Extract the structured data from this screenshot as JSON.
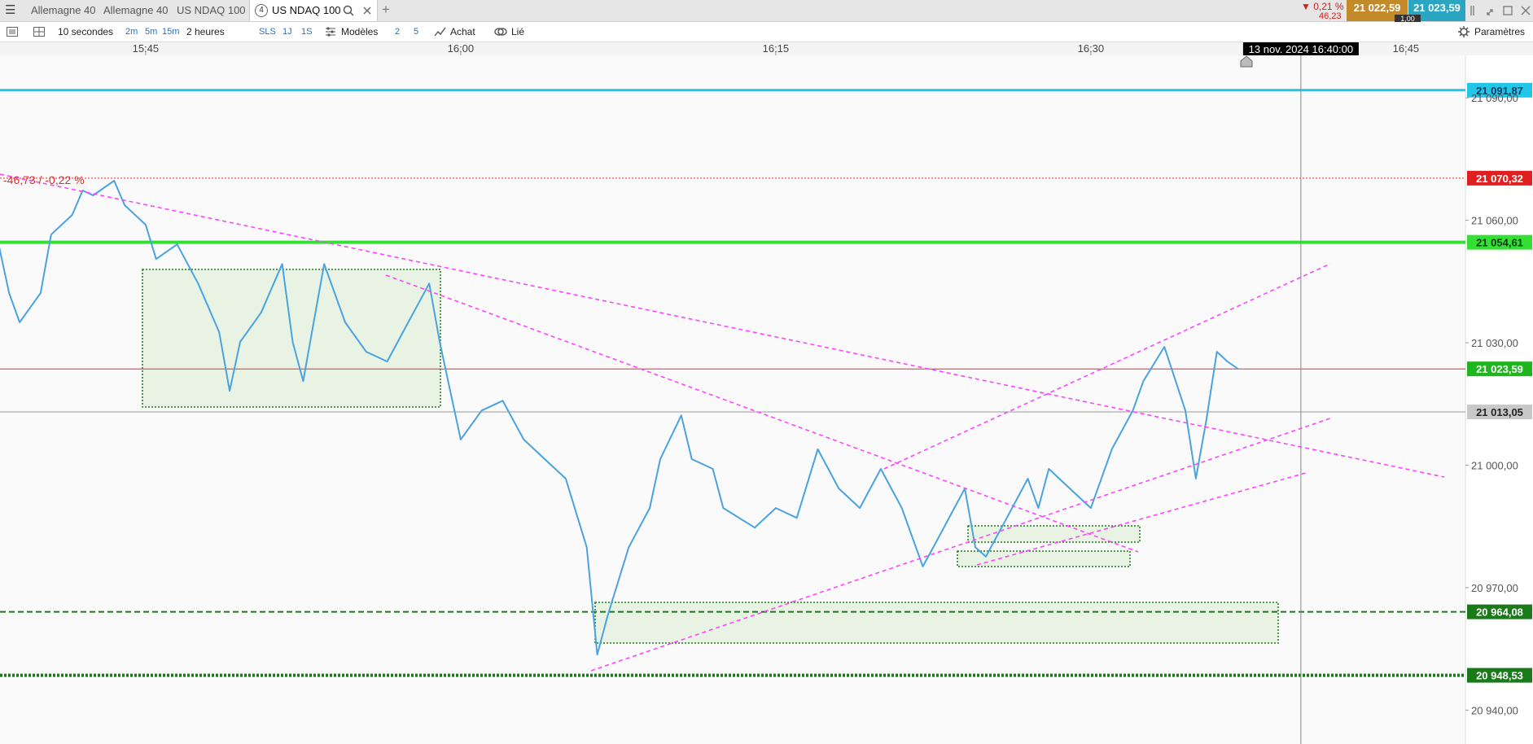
{
  "header": {
    "tabs": [
      {
        "label": "Allemagne 40"
      },
      {
        "label": "Allemagne 40"
      },
      {
        "label": "US NDAQ 100"
      },
      {
        "label": "US NDAQ 100",
        "badge": "4"
      }
    ],
    "change": "▼ 0,21 %",
    "change_points": "46,23",
    "bid": "21 022,59",
    "ask": "21 023,59",
    "spread": "1,00"
  },
  "toolbar": {
    "interval": "10 secondes",
    "quick_1": "2m",
    "quick_2": "5m",
    "quick_3": "15m",
    "range": "2 heures",
    "quick_4": "SLS",
    "quick_5": "1J",
    "quick_6": "1S",
    "templates": "Modèles",
    "quick_7": "2",
    "quick_8": "5",
    "buy": "Achat",
    "linked": "Lié",
    "settings": "Paramètres"
  },
  "chart_data": {
    "type": "line",
    "color": "#4aa3df",
    "x": [
      "15:38:00",
      "15:38:30",
      "15:39:00",
      "15:40:00",
      "15:40:30",
      "15:41:30",
      "15:42:00",
      "15:42:30",
      "15:43:30",
      "15:44:00",
      "15:45:00",
      "15:45:30",
      "15:46:30",
      "15:47:30",
      "15:48:30",
      "15:49:00",
      "15:49:30",
      "15:50:30",
      "15:51:30",
      "15:52:00",
      "15:52:30",
      "15:53:00",
      "15:53:30",
      "15:54:30",
      "15:55:30",
      "15:56:30",
      "15:57:30",
      "15:58:30",
      "15:59:00",
      "15:59:30",
      "16:00:00",
      "16:01:00",
      "16:02:00",
      "16:03:00",
      "16:04:00",
      "16:05:00",
      "16:06:00",
      "16:06:30",
      "16:07:00",
      "16:08:00",
      "16:09:00",
      "16:09:30",
      "16:10:30",
      "16:11:00",
      "16:12:00",
      "16:12:30",
      "16:14:00",
      "16:15:00",
      "16:16:00",
      "16:17:00",
      "16:18:00",
      "16:19:00",
      "16:20:00",
      "16:21:00",
      "16:22:00",
      "16:22:30",
      "16:24:00",
      "16:24:30",
      "16:25:00",
      "16:26:00",
      "16:27:00",
      "16:27:30",
      "16:28:00",
      "16:29:00",
      "16:30:00",
      "16:31:00",
      "16:32:00",
      "16:32:30",
      "16:33:30",
      "16:34:30",
      "16:35:00",
      "16:35:30",
      "16:36:00",
      "16:36:30",
      "16:37:00"
    ],
    "values": [
      21054.1,
      21042.2,
      21035.0,
      21042.2,
      21056.5,
      21061.3,
      21067.3,
      21066.1,
      21069.7,
      21063.7,
      21058.9,
      21050.5,
      21054.1,
      21044.5,
      21032.6,
      21018.2,
      21030.2,
      21037.4,
      21049.3,
      21030.2,
      21020.6,
      21035.0,
      21049.3,
      21035.0,
      21027.8,
      21025.4,
      21035.0,
      21044.5,
      21030.2,
      21018.2,
      21006.3,
      21013.4,
      21015.8,
      21006.3,
      21001.5,
      20996.7,
      20979.9,
      20953.6,
      20963.2,
      20979.9,
      20989.5,
      21001.5,
      21012.2,
      21001.5,
      20999.1,
      20989.5,
      20984.7,
      20989.5,
      20987.1,
      21003.9,
      20994.3,
      20989.5,
      20999.1,
      20989.5,
      20975.2,
      20979.9,
      20994.3,
      20979.9,
      20977.6,
      20987.1,
      20996.7,
      20989.5,
      20999.1,
      20994.3,
      20989.5,
      21003.9,
      21013.4,
      21020.6,
      21029.0,
      21013.4,
      20996.7,
      21011.1,
      21027.8,
      21025.4,
      21023.6
    ],
    "xlim": [
      "15:38:04",
      "16:47:50"
    ],
    "xticks": [
      "15:45",
      "16:00",
      "16:15",
      "16:30",
      "16:45"
    ],
    "ylim": [
      20931.7,
      21100.4
    ],
    "yticks": [
      {
        "value": 20940,
        "label": "20 940,00"
      },
      {
        "value": 20970,
        "label": "20 970,00"
      },
      {
        "value": 21000,
        "label": "21 000,00"
      },
      {
        "value": 21030,
        "label": "21 030,00"
      },
      {
        "value": 21060,
        "label": "21 060,00"
      },
      {
        "value": 21090,
        "label": "21 090,00"
      }
    ],
    "levels": [
      {
        "value": 21091.87,
        "label": "21 091,87",
        "color": "#22c6e6",
        "label_bg": "#22c6e6",
        "label_color": "#0b3c66",
        "style": "solid",
        "width": 3
      },
      {
        "value": 21070.32,
        "label": "21 070,32",
        "color": "#e03030",
        "label_bg": "#e02020",
        "label_color": "#ffffff",
        "style": "dotted",
        "width": 1
      },
      {
        "value": 21054.61,
        "label": "21 054,61",
        "color": "#33e033",
        "label_bg": "#33e033",
        "label_color": "#0a3a0a",
        "style": "solid",
        "width": 4
      },
      {
        "value": 21023.59,
        "label": "21 023,59",
        "color": "#e03030",
        "label_bg": "#1fb51f",
        "label_color": "#ffffff",
        "style": "solid",
        "width": 1
      },
      {
        "value": 21013.05,
        "label": "21 013,05",
        "color": "#9a9a9a",
        "label_bg": "#c8c8c8",
        "label_color": "#222222",
        "style": "solid",
        "width": 1
      },
      {
        "value": 20964.08,
        "label": "20 964,08",
        "color": "#1a7a1a",
        "label_bg": "#1a7a1a",
        "label_color": "#ffffff",
        "style": "dashed",
        "width": 2
      },
      {
        "value": 20948.53,
        "label": "20 948,53",
        "color": "#1a7a1a",
        "label_bg": "#1a7a1a",
        "label_color": "#ffffff",
        "style": "dotted",
        "width": 4
      }
    ],
    "crosshair": {
      "x": "16:40:00",
      "label": "13 nov. 2024 16:40:00"
    },
    "annotation": "-46,73 / -0,22 %"
  }
}
